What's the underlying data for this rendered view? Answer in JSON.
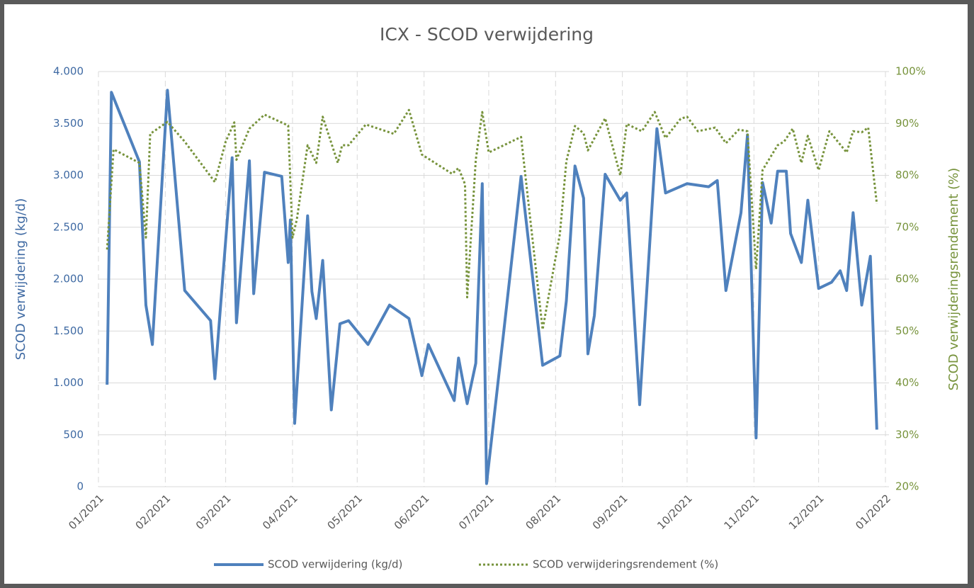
{
  "chart_data": {
    "type": "line",
    "title": "ICX - SCOD verwijdering",
    "y_label": "SCOD verwijdering (kg/d)",
    "y2_label": "SCOD verwijderingsrendement (%)",
    "xlim": [
      0,
      365
    ],
    "xticks": [
      {
        "value": 0,
        "label": "01/2021"
      },
      {
        "value": 31,
        "label": "02/2021"
      },
      {
        "value": 59,
        "label": "03/2021"
      },
      {
        "value": 90,
        "label": "04/2021"
      },
      {
        "value": 120,
        "label": "05/2021"
      },
      {
        "value": 151,
        "label": "06/2021"
      },
      {
        "value": 181,
        "label": "07/2021"
      },
      {
        "value": 212,
        "label": "08/2021"
      },
      {
        "value": 243,
        "label": "09/2021"
      },
      {
        "value": 273,
        "label": "10/2021"
      },
      {
        "value": 304,
        "label": "11/2021"
      },
      {
        "value": 334,
        "label": "12/2021"
      },
      {
        "value": 365,
        "label": "01/2022"
      }
    ],
    "ylim": [
      0,
      4000
    ],
    "yticks": [
      0,
      500,
      {
        "value": 1000,
        "label": "1.000"
      },
      {
        "value": 1500,
        "label": "1.500"
      },
      {
        "value": 2000,
        "label": "2.000"
      },
      {
        "value": 2500,
        "label": "2.500"
      },
      {
        "value": 3000,
        "label": "3.000"
      },
      {
        "value": 3500,
        "label": "3.500"
      },
      {
        "value": 4000,
        "label": "4.000"
      }
    ],
    "y2lim": [
      20,
      100
    ],
    "y2ticks": [
      {
        "value": 20,
        "label": "20%"
      },
      {
        "value": 30,
        "label": "30%"
      },
      {
        "value": 40,
        "label": "40%"
      },
      {
        "value": 50,
        "label": "50%"
      },
      {
        "value": 60,
        "label": "60%"
      },
      {
        "value": 70,
        "label": "70%"
      },
      {
        "value": 80,
        "label": "80%"
      },
      {
        "value": 90,
        "label": "90%"
      },
      {
        "value": 100,
        "label": "100%"
      }
    ],
    "grid": true,
    "series": [
      {
        "name": "SCOD verwijdering (kg/d)",
        "color": "#4f81bd",
        "style": "solid",
        "x": [
          4,
          6,
          19,
          22,
          25,
          32,
          40,
          52,
          54,
          62,
          64,
          70,
          72,
          77,
          85,
          88,
          89,
          91,
          97,
          99,
          101,
          104,
          108,
          112,
          116,
          125,
          135,
          144,
          150,
          153,
          165,
          167,
          171,
          175,
          178,
          180,
          188,
          196,
          206,
          214,
          217,
          221,
          225,
          227,
          230,
          235,
          242,
          245,
          251,
          259,
          263,
          273,
          283,
          287,
          291,
          298,
          301,
          305,
          308,
          312,
          315,
          319,
          321,
          326,
          329,
          334,
          340,
          344,
          347,
          350,
          354,
          358,
          361
        ],
        "values": [
          983,
          3800,
          3130,
          1750,
          1370,
          3820,
          1890,
          1600,
          1040,
          3170,
          1580,
          3140,
          1860,
          3030,
          2990,
          2160,
          2570,
          610,
          2610,
          1880,
          1620,
          2180,
          740,
          1570,
          1600,
          1370,
          1750,
          1620,
          1070,
          1370,
          830,
          1240,
          800,
          1190,
          2920,
          30,
          1500,
          2990,
          1170,
          1260,
          1790,
          3090,
          2780,
          1280,
          1650,
          3010,
          2760,
          2830,
          790,
          3450,
          2830,
          2920,
          2890,
          2950,
          1890,
          2640,
          3390,
          470,
          2930,
          2540,
          3040,
          3040,
          2440,
          2160,
          2760,
          1910,
          1970,
          2080,
          1890,
          2640,
          1750,
          2220,
          550
        ]
      },
      {
        "name": "SCOD verwijderingsrendement (%)",
        "color": "#77933c",
        "style": "dotted",
        "axis": "y2",
        "x": [
          4,
          7,
          19,
          22,
          24,
          32,
          40,
          54,
          59,
          63,
          64,
          70,
          77,
          88,
          90,
          92,
          97,
          101,
          104,
          111,
          113,
          116,
          124,
          137,
          144,
          150,
          164,
          167,
          170,
          171,
          175,
          178,
          181,
          196,
          206,
          214,
          217,
          221,
          225,
          227,
          235,
          242,
          245,
          252,
          258,
          263,
          270,
          273,
          278,
          286,
          291,
          297,
          301,
          305,
          308,
          315,
          318,
          322,
          326,
          329,
          334,
          339,
          347,
          350,
          354,
          357,
          361
        ],
        "values": [
          65.7,
          85,
          82.4,
          68,
          88,
          90.3,
          86.5,
          78.7,
          86.5,
          90.2,
          83,
          89,
          91.7,
          89.6,
          68,
          71.5,
          85.8,
          82.4,
          91.3,
          82.4,
          85.8,
          85.8,
          89.8,
          88,
          92.6,
          84,
          80.3,
          81.4,
          78.3,
          56.5,
          83,
          92.2,
          84.4,
          87.4,
          50.3,
          68.7,
          82.7,
          89.5,
          88.1,
          84.8,
          91,
          80,
          89.9,
          88.5,
          92.2,
          87.2,
          90.9,
          91.3,
          88.5,
          89.2,
          86.2,
          88.8,
          88.5,
          61.9,
          81,
          85.8,
          86.5,
          89,
          82.4,
          87.6,
          81,
          88.5,
          84.4,
          88.5,
          88.3,
          89.2,
          74.5
        ]
      }
    ]
  }
}
